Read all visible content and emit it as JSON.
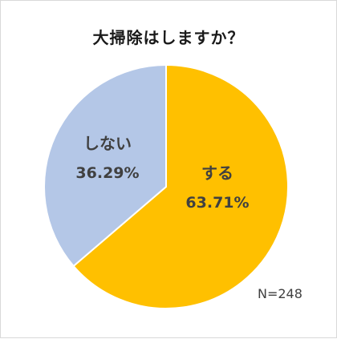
{
  "chart_data": {
    "type": "pie",
    "title": "大掃除はしますか？",
    "slices": [
      {
        "label": "する",
        "value": 63.71,
        "value_text": "63.71%",
        "color": "#FFC000"
      },
      {
        "label": "しない",
        "value": 36.29,
        "value_text": "36.29%",
        "color": "#B4C7E7"
      }
    ],
    "start": "12 o'clock, clockwise",
    "slice_border_color": "#ffffff",
    "label_color": "#404040",
    "legend": "none",
    "note": "N=248"
  }
}
